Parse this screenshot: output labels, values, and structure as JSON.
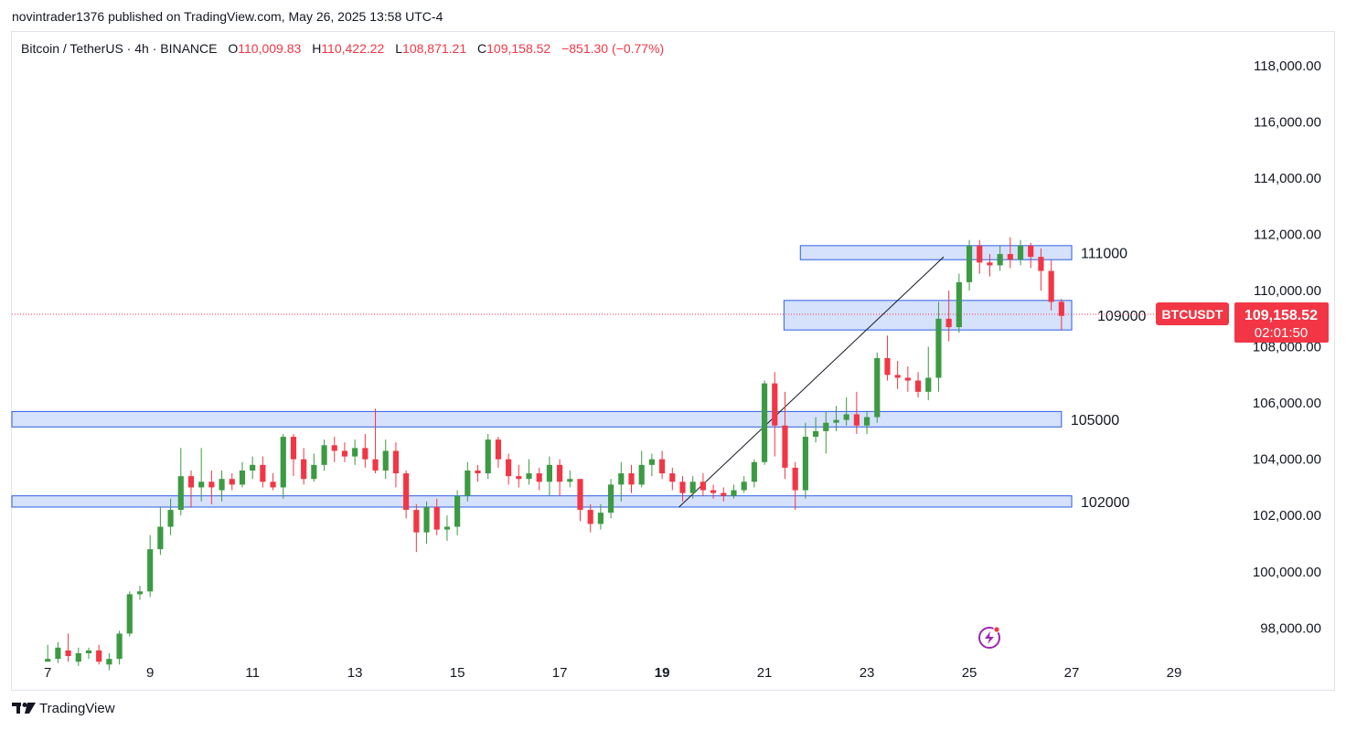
{
  "header": {
    "published": "novintrader1376 published on TradingView.com, May 26, 2025 13:58 UTC-4"
  },
  "legend": {
    "symbol": "Bitcoin / TetherUS · 4h · BINANCE",
    "open_label": "O",
    "open": "110,009.83",
    "high_label": "H",
    "high": "110,422.22",
    "low_label": "L",
    "low": "108,871.21",
    "close_label": "C",
    "close": "109,158.52",
    "change": "−851.30 (−0.77%)"
  },
  "footer": {
    "brand": "TradingView"
  },
  "icons": {
    "brand_logo": "tradingview-logo-icon",
    "snapshot": "lightning-icon"
  },
  "colors": {
    "up": "#3c9a43",
    "down": "#f23645",
    "zone_fill": "#cfdcfb",
    "zone_stroke": "#2d5ee6",
    "price_line": "#f23645"
  },
  "chart_data": {
    "type": "candlestick",
    "ylim": [
      95800,
      119200
    ],
    "xlim": [
      6.3,
      30
    ],
    "y_ticks": [
      "98,000.00",
      "100,000.00",
      "102,000.00",
      "104,000.00",
      "106,000.00",
      "108,000.00",
      "110,000.00",
      "112,000.00",
      "114,000.00",
      "116,000.00",
      "118,000.00"
    ],
    "y_tick_values": [
      98000,
      100000,
      102000,
      104000,
      106000,
      108000,
      110000,
      112000,
      114000,
      116000,
      118000
    ],
    "x_ticks": [
      "7",
      "9",
      "11",
      "13",
      "15",
      "17",
      "19",
      "21",
      "23",
      "25",
      "27",
      "29"
    ],
    "x_tick_values": [
      7,
      9,
      11,
      13,
      15,
      17,
      19,
      21,
      23,
      25,
      27,
      29
    ],
    "bold_x_ticks": [
      "19"
    ],
    "last_price": {
      "symbol": "BTCUSDT",
      "price": "109,158.52",
      "countdown": "02:01:50",
      "value": 109158.52
    },
    "zones": [
      {
        "label": "111000",
        "from_day": 21.7,
        "to_day": 27.0,
        "low": 111100,
        "high": 111600
      },
      {
        "label": "109000",
        "from_day": 21.38,
        "to_day": 27.0,
        "low": 108600,
        "high": 109650
      },
      {
        "label": "105000",
        "from_day": 6.3,
        "to_day": 26.8,
        "low": 105150,
        "high": 105700
      },
      {
        "label": "102000",
        "from_day": 6.3,
        "to_day": 27.0,
        "low": 102300,
        "high": 102700
      }
    ],
    "trendline": {
      "from": [
        19.33,
        102300
      ],
      "to": [
        24.5,
        111200
      ]
    },
    "candles": [
      [
        7.0,
        96800,
        96900,
        97400,
        96800
      ],
      [
        7.2,
        96900,
        97300,
        97500,
        96750
      ],
      [
        7.4,
        97200,
        97000,
        97800,
        96800
      ],
      [
        7.6,
        96800,
        97100,
        97300,
        96650
      ],
      [
        7.8,
        97100,
        97200,
        97300,
        96900
      ],
      [
        8.0,
        97200,
        96800,
        97400,
        96700
      ],
      [
        8.2,
        96700,
        96900,
        97100,
        96500
      ],
      [
        8.4,
        96900,
        97800,
        97900,
        96700
      ],
      [
        8.6,
        97800,
        99200,
        99300,
        97700
      ],
      [
        8.8,
        99200,
        99300,
        99500,
        99000
      ],
      [
        9.0,
        99300,
        100800,
        101300,
        99100
      ],
      [
        9.2,
        100800,
        101600,
        102300,
        100600
      ],
      [
        9.4,
        101600,
        102200,
        102600,
        101300
      ],
      [
        9.6,
        102200,
        103400,
        104400,
        102000
      ],
      [
        9.8,
        103400,
        103000,
        103600,
        102300
      ],
      [
        10.0,
        103000,
        103200,
        104400,
        102500
      ],
      [
        10.2,
        103200,
        103000,
        103600,
        102400
      ],
      [
        10.4,
        102900,
        103300,
        103600,
        102500
      ],
      [
        10.6,
        103300,
        103100,
        103500,
        102900
      ],
      [
        10.8,
        103100,
        103600,
        103900,
        103000
      ],
      [
        11.0,
        103600,
        103800,
        104100,
        103300
      ],
      [
        11.2,
        103800,
        103200,
        104100,
        103000
      ],
      [
        11.4,
        103200,
        103000,
        103500,
        102900
      ],
      [
        11.6,
        103000,
        104800,
        104900,
        102600
      ],
      [
        11.8,
        104800,
        104000,
        104900,
        103400
      ],
      [
        12.0,
        104000,
        103300,
        104400,
        103100
      ],
      [
        12.2,
        103300,
        103800,
        104200,
        103200
      ],
      [
        12.4,
        103800,
        104500,
        104700,
        103600
      ],
      [
        12.6,
        104500,
        104300,
        104800,
        103900
      ],
      [
        12.8,
        104300,
        104100,
        104600,
        103900
      ],
      [
        13.0,
        104100,
        104400,
        104700,
        103800
      ],
      [
        13.2,
        104400,
        104000,
        104900,
        103700
      ],
      [
        13.4,
        104000,
        103600,
        105800,
        103500
      ],
      [
        13.6,
        103600,
        104300,
        104700,
        103300
      ],
      [
        13.8,
        104300,
        103500,
        104600,
        103000
      ],
      [
        14.0,
        103500,
        102200,
        103600,
        101900
      ],
      [
        14.2,
        102200,
        101400,
        102400,
        100700
      ],
      [
        14.4,
        101400,
        102300,
        102500,
        101000
      ],
      [
        14.6,
        102300,
        101500,
        102600,
        101300
      ],
      [
        14.8,
        101500,
        101600,
        102000,
        101100
      ],
      [
        15.0,
        101600,
        102700,
        102900,
        101300
      ],
      [
        15.2,
        102700,
        103600,
        103900,
        102500
      ],
      [
        15.4,
        103600,
        103500,
        103800,
        103200
      ],
      [
        15.6,
        103500,
        104700,
        104900,
        103300
      ],
      [
        15.8,
        104700,
        104000,
        104800,
        103700
      ],
      [
        16.0,
        104000,
        103400,
        104200,
        103100
      ],
      [
        16.2,
        103400,
        103300,
        103800,
        103000
      ],
      [
        16.4,
        103300,
        103500,
        104000,
        103100
      ],
      [
        16.6,
        103500,
        103200,
        103700,
        102900
      ],
      [
        16.8,
        103200,
        103800,
        104100,
        102700
      ],
      [
        17.0,
        103800,
        103200,
        104000,
        102700
      ],
      [
        17.2,
        103200,
        103300,
        103600,
        103000
      ],
      [
        17.4,
        103300,
        102200,
        103300,
        101800
      ],
      [
        17.6,
        102200,
        101700,
        102400,
        101400
      ],
      [
        17.8,
        101700,
        102100,
        102400,
        101500
      ],
      [
        18.0,
        102100,
        103100,
        103300,
        101900
      ],
      [
        18.2,
        103100,
        103500,
        103900,
        102500
      ],
      [
        18.4,
        103500,
        103100,
        103800,
        102800
      ],
      [
        18.6,
        103100,
        103800,
        104300,
        103000
      ],
      [
        18.8,
        103800,
        104000,
        104200,
        103400
      ],
      [
        19.0,
        104000,
        103500,
        104300,
        103300
      ],
      [
        19.2,
        103500,
        103200,
        103700,
        102900
      ],
      [
        19.4,
        103200,
        102800,
        103400,
        102500
      ],
      [
        19.6,
        102800,
        103200,
        103400,
        102600
      ],
      [
        19.8,
        103200,
        102900,
        103500,
        102700
      ],
      [
        20.0,
        102900,
        102800,
        103100,
        102600
      ],
      [
        20.2,
        102800,
        102700,
        103000,
        102500
      ],
      [
        20.4,
        102700,
        102900,
        103100,
        102600
      ],
      [
        20.6,
        102900,
        103200,
        103400,
        102800
      ],
      [
        20.8,
        103200,
        103900,
        104000,
        103000
      ],
      [
        21.0,
        103900,
        106700,
        106800,
        103800
      ],
      [
        21.2,
        106700,
        105200,
        107100,
        104100
      ],
      [
        21.4,
        105200,
        103700,
        106400,
        103300
      ],
      [
        21.6,
        103700,
        102900,
        103900,
        102200
      ],
      [
        21.8,
        102900,
        104800,
        105300,
        102600
      ],
      [
        22.0,
        104800,
        105000,
        105500,
        104600
      ],
      [
        22.2,
        105000,
        105300,
        105700,
        104200
      ],
      [
        22.4,
        105300,
        105400,
        105900,
        105000
      ],
      [
        22.6,
        105400,
        105600,
        106200,
        105200
      ],
      [
        22.8,
        105600,
        105200,
        106400,
        104900
      ],
      [
        23.0,
        105200,
        105500,
        105700,
        104900
      ],
      [
        23.2,
        105500,
        107600,
        107800,
        105300
      ],
      [
        23.4,
        107600,
        107000,
        108400,
        106800
      ],
      [
        23.6,
        107000,
        106900,
        107500,
        106500
      ],
      [
        23.8,
        106900,
        106800,
        107300,
        106400
      ],
      [
        24.0,
        106800,
        106400,
        107100,
        106200
      ],
      [
        24.2,
        106400,
        106900,
        108000,
        106100
      ],
      [
        24.4,
        106900,
        109000,
        109600,
        106400
      ],
      [
        24.6,
        109000,
        108700,
        110000,
        108200
      ],
      [
        24.8,
        108700,
        110300,
        110600,
        108500
      ],
      [
        25.0,
        110300,
        111600,
        111800,
        110000
      ],
      [
        25.2,
        111600,
        111000,
        111800,
        110600
      ],
      [
        25.4,
        111000,
        110900,
        111300,
        110500
      ],
      [
        25.6,
        110900,
        111300,
        111600,
        110700
      ],
      [
        25.8,
        111300,
        111100,
        111900,
        110800
      ],
      [
        26.0,
        111100,
        111600,
        111800,
        110900
      ],
      [
        26.2,
        111600,
        111200,
        111700,
        110800
      ],
      [
        26.4,
        111200,
        110700,
        111500,
        110000
      ],
      [
        26.6,
        110700,
        109600,
        111100,
        109300
      ],
      [
        26.8,
        109600,
        109100,
        109700,
        108600
      ]
    ]
  }
}
